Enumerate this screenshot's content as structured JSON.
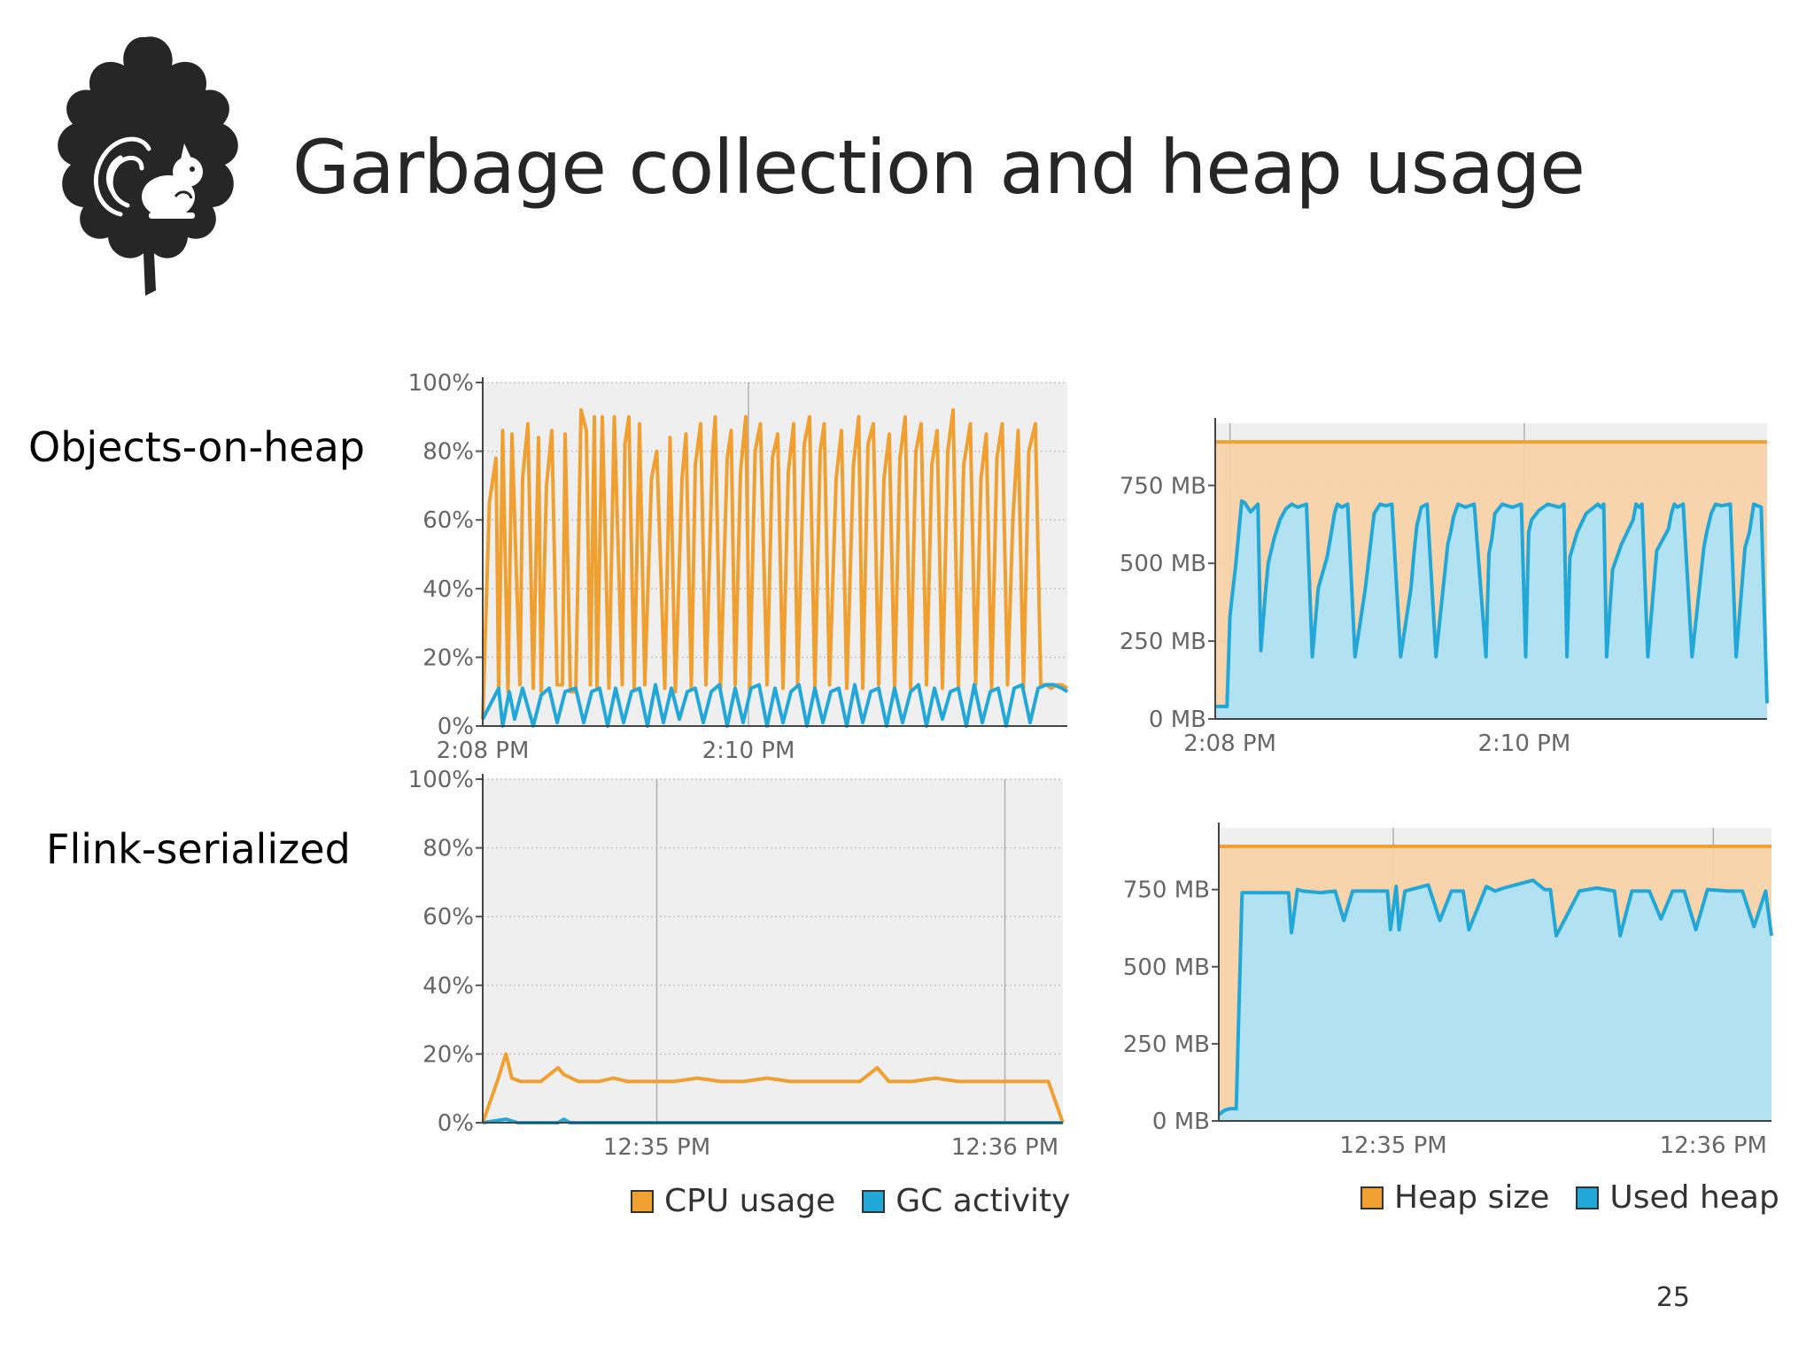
{
  "title": "Garbage collection and heap usage",
  "row_labels": {
    "top": "Objects-on-heap",
    "bottom": "Flink-serialized"
  },
  "page_number": "25",
  "colors": {
    "orange": "#F0A030",
    "blue": "#22A8D8",
    "text": "#262626"
  },
  "legends": {
    "cpu": [
      {
        "label": "CPU usage",
        "color": "#F0A030"
      },
      {
        "label": "GC activity",
        "color": "#22A8D8"
      }
    ],
    "heap": [
      {
        "label": "Heap size",
        "color": "#F0A030"
      },
      {
        "label": "Used heap",
        "color": "#22A8D8"
      }
    ]
  },
  "chart_data": [
    {
      "type": "line",
      "ylim": [
        0,
        100
      ],
      "xlim": [
        0,
        4.4
      ],
      "yticks": [
        0,
        20,
        40,
        60,
        80,
        100
      ],
      "ytick_labels": [
        "0%",
        "20%",
        "40%",
        "60%",
        "80%",
        "100%"
      ],
      "xticks": [
        0,
        2
      ],
      "xtick_labels": [
        "2:08 PM",
        "2:10 PM"
      ],
      "grid": true,
      "series": [
        {
          "name": "CPU usage",
          "color": "#F0A030",
          "x": [
            0.0,
            0.05,
            0.1,
            0.12,
            0.15,
            0.19,
            0.22,
            0.28,
            0.3,
            0.34,
            0.38,
            0.42,
            0.44,
            0.48,
            0.52,
            0.56,
            0.6,
            0.62,
            0.66,
            0.7,
            0.74,
            0.78,
            0.81,
            0.84,
            0.86,
            0.9,
            0.95,
            0.99,
            1.05,
            1.07,
            1.1,
            1.14,
            1.18,
            1.22,
            1.27,
            1.31,
            1.37,
            1.41,
            1.45,
            1.5,
            1.53,
            1.57,
            1.6,
            1.64,
            1.68,
            1.73,
            1.75,
            1.79,
            1.84,
            1.87,
            1.9,
            1.94,
            1.98,
            2.01,
            2.05,
            2.09,
            2.14,
            2.18,
            2.22,
            2.26,
            2.3,
            2.34,
            2.37,
            2.42,
            2.46,
            2.5,
            2.54,
            2.57,
            2.61,
            2.66,
            2.7,
            2.74,
            2.79,
            2.83,
            2.86,
            2.9,
            2.94,
            2.98,
            3.02,
            3.06,
            3.1,
            3.14,
            3.18,
            3.22,
            3.26,
            3.3,
            3.34,
            3.38,
            3.42,
            3.46,
            3.5,
            3.54,
            3.58,
            3.62,
            3.67,
            3.71,
            3.75,
            3.79,
            3.83,
            3.87,
            3.91,
            3.95,
            3.99,
            4.03,
            4.07,
            4.11,
            4.16,
            4.2,
            4.24,
            4.28,
            4.32,
            4.36,
            4.4
          ],
          "y": [
            2,
            65,
            78,
            10,
            86,
            10,
            85,
            12,
            72,
            88,
            11,
            84,
            10,
            70,
            86,
            12,
            12,
            85,
            10,
            10,
            92,
            86,
            12,
            90,
            11,
            90,
            11,
            90,
            12,
            82,
            90,
            11,
            88,
            12,
            72,
            80,
            11,
            84,
            10,
            72,
            85,
            11,
            76,
            88,
            12,
            80,
            90,
            11,
            78,
            86,
            12,
            74,
            90,
            11,
            80,
            88,
            12,
            78,
            85,
            11,
            74,
            88,
            12,
            82,
            90,
            11,
            80,
            88,
            12,
            72,
            86,
            11,
            76,
            90,
            11,
            82,
            88,
            12,
            72,
            85,
            11,
            78,
            90,
            11,
            80,
            88,
            12,
            76,
            86,
            11,
            80,
            92,
            11,
            76,
            88,
            12,
            72,
            85,
            11,
            78,
            88,
            12,
            60,
            86,
            11,
            80,
            88,
            12,
            12,
            11,
            12,
            12,
            11
          ]
        },
        {
          "name": "GC activity",
          "color": "#22A8D8",
          "x": [
            0.0,
            0.08,
            0.12,
            0.15,
            0.2,
            0.24,
            0.3,
            0.38,
            0.44,
            0.5,
            0.56,
            0.62,
            0.7,
            0.76,
            0.82,
            0.88,
            0.94,
            1.0,
            1.06,
            1.12,
            1.18,
            1.24,
            1.3,
            1.36,
            1.42,
            1.48,
            1.54,
            1.6,
            1.66,
            1.72,
            1.78,
            1.84,
            1.9,
            1.96,
            2.02,
            2.08,
            2.14,
            2.2,
            2.26,
            2.32,
            2.38,
            2.44,
            2.5,
            2.56,
            2.62,
            2.68,
            2.74,
            2.8,
            2.86,
            2.92,
            2.98,
            3.04,
            3.1,
            3.16,
            3.22,
            3.28,
            3.34,
            3.4,
            3.46,
            3.52,
            3.58,
            3.64,
            3.7,
            3.76,
            3.82,
            3.88,
            3.94,
            4.0,
            4.06,
            4.12,
            4.18,
            4.24,
            4.3,
            4.36,
            4.4
          ],
          "y": [
            2,
            8,
            11,
            0,
            10,
            2,
            11,
            0,
            9,
            11,
            1,
            10,
            11,
            1,
            10,
            11,
            0,
            11,
            1,
            10,
            11,
            0,
            12,
            1,
            11,
            2,
            10,
            11,
            1,
            10,
            12,
            0,
            11,
            1,
            11,
            12,
            0,
            11,
            1,
            10,
            12,
            0,
            11,
            1,
            10,
            11,
            0,
            12,
            1,
            10,
            11,
            0,
            11,
            1,
            10,
            12,
            0,
            11,
            2,
            10,
            11,
            0,
            12,
            1,
            10,
            11,
            0,
            11,
            12,
            1,
            11,
            12,
            12,
            11,
            10
          ]
        }
      ]
    },
    {
      "type": "area",
      "ylim": [
        0,
        950
      ],
      "xlim": [
        0,
        3.75
      ],
      "yticks": [
        0,
        250,
        500,
        750
      ],
      "ytick_labels": [
        "0 MB",
        "250 MB",
        "500 MB",
        "750 MB"
      ],
      "xticks": [
        0.1,
        2.1
      ],
      "xtick_labels": [
        "2:08 PM",
        "2:10 PM"
      ],
      "grid": true,
      "series": [
        {
          "name": "Heap size",
          "color": "#F0A030",
          "x": [
            0.0,
            3.75
          ],
          "y": [
            890,
            890
          ]
        },
        {
          "name": "Used heap",
          "color": "#22A8D8",
          "x": [
            0.0,
            0.06,
            0.08,
            0.1,
            0.14,
            0.18,
            0.2,
            0.24,
            0.29,
            0.31,
            0.34,
            0.36,
            0.4,
            0.44,
            0.48,
            0.52,
            0.56,
            0.62,
            0.66,
            0.7,
            0.76,
            0.79,
            0.81,
            0.83,
            0.86,
            0.9,
            0.95,
            1.02,
            1.04,
            1.06,
            1.08,
            1.12,
            1.16,
            1.2,
            1.26,
            1.33,
            1.35,
            1.37,
            1.4,
            1.44,
            1.5,
            1.58,
            1.6,
            1.62,
            1.65,
            1.7,
            1.76,
            1.84,
            1.86,
            1.88,
            1.9,
            1.95,
            2.02,
            2.08,
            2.11,
            2.13,
            2.15,
            2.2,
            2.26,
            2.34,
            2.37,
            2.39,
            2.41,
            2.46,
            2.52,
            2.6,
            2.62,
            2.64,
            2.66,
            2.7,
            2.76,
            2.84,
            2.86,
            2.88,
            2.9,
            2.94,
            3.0,
            3.08,
            3.1,
            3.12,
            3.14,
            3.18,
            3.24,
            3.32,
            3.34,
            3.37,
            3.4,
            3.44,
            3.5,
            3.54,
            3.6,
            3.63,
            3.66,
            3.71,
            3.75
          ],
          "y": [
            40,
            40,
            40,
            330,
            500,
            700,
            695,
            665,
            690,
            220,
            400,
            500,
            580,
            640,
            675,
            690,
            680,
            690,
            200,
            420,
            520,
            600,
            660,
            690,
            680,
            690,
            200,
            420,
            500,
            580,
            660,
            690,
            685,
            690,
            200,
            420,
            530,
            620,
            680,
            690,
            200,
            560,
            600,
            650,
            690,
            680,
            690,
            200,
            530,
            580,
            660,
            690,
            680,
            690,
            200,
            600,
            640,
            670,
            690,
            680,
            690,
            200,
            520,
            600,
            660,
            690,
            680,
            690,
            200,
            480,
            560,
            640,
            690,
            680,
            690,
            200,
            540,
            610,
            660,
            690,
            680,
            690,
            200,
            550,
            600,
            660,
            690,
            685,
            690,
            200,
            550,
            600,
            690,
            680,
            50
          ]
        }
      ]
    },
    {
      "type": "line",
      "ylim": [
        0,
        100
      ],
      "xlim": [
        0,
        2.0
      ],
      "yticks": [
        0,
        20,
        40,
        60,
        80,
        100
      ],
      "ytick_labels": [
        "0%",
        "20%",
        "40%",
        "60%",
        "80%",
        "100%"
      ],
      "xticks": [
        0.6,
        1.8
      ],
      "xtick_labels": [
        "12:35 PM",
        "12:36 PM"
      ],
      "grid": true,
      "series": [
        {
          "name": "CPU usage",
          "color": "#F0A030",
          "x": [
            0.0,
            0.05,
            0.08,
            0.1,
            0.13,
            0.2,
            0.26,
            0.28,
            0.33,
            0.4,
            0.45,
            0.5,
            0.58,
            0.66,
            0.74,
            0.82,
            0.9,
            0.98,
            1.06,
            1.14,
            1.22,
            1.3,
            1.36,
            1.4,
            1.48,
            1.56,
            1.64,
            1.72,
            1.8,
            1.88,
            1.95,
            2.0
          ],
          "y": [
            0,
            12,
            20,
            13,
            12,
            12,
            16,
            14,
            12,
            12,
            13,
            12,
            12,
            12,
            13,
            12,
            12,
            13,
            12,
            12,
            12,
            12,
            16,
            12,
            12,
            13,
            12,
            12,
            12,
            12,
            12,
            0
          ]
        },
        {
          "name": "GC activity",
          "color": "#22A8D8",
          "x": [
            0.0,
            0.08,
            0.12,
            0.26,
            0.28,
            0.3,
            0.5,
            1.0,
            1.5,
            2.0
          ],
          "y": [
            0,
            1,
            0,
            0,
            1,
            0,
            0,
            0,
            0,
            0
          ]
        }
      ]
    },
    {
      "type": "area",
      "ylim": [
        0,
        950
      ],
      "xlim": [
        0,
        1.9
      ],
      "yticks": [
        0,
        250,
        500,
        750
      ],
      "ytick_labels": [
        "0 MB",
        "250 MB",
        "500 MB",
        "750 MB"
      ],
      "xticks": [
        0.6,
        1.7
      ],
      "xtick_labels": [
        "12:35 PM",
        "12:36 PM"
      ],
      "grid": true,
      "series": [
        {
          "name": "Heap size",
          "color": "#F0A030",
          "x": [
            0.0,
            1.9
          ],
          "y": [
            890,
            890
          ]
        },
        {
          "name": "Used heap",
          "color": "#22A8D8",
          "x": [
            0.0,
            0.02,
            0.04,
            0.06,
            0.08,
            0.1,
            0.24,
            0.25,
            0.27,
            0.29,
            0.35,
            0.4,
            0.43,
            0.46,
            0.58,
            0.59,
            0.61,
            0.62,
            0.64,
            0.66,
            0.72,
            0.76,
            0.8,
            0.82,
            0.84,
            0.86,
            0.92,
            0.95,
            0.98,
            1.08,
            1.12,
            1.14,
            1.16,
            1.24,
            1.3,
            1.36,
            1.38,
            1.42,
            1.48,
            1.52,
            1.56,
            1.6,
            1.64,
            1.68,
            1.75,
            1.8,
            1.84,
            1.88,
            1.9
          ],
          "y": [
            20,
            35,
            40,
            40,
            740,
            740,
            740,
            610,
            750,
            745,
            740,
            745,
            650,
            745,
            745,
            620,
            760,
            620,
            745,
            750,
            765,
            650,
            745,
            745,
            745,
            620,
            760,
            745,
            755,
            780,
            750,
            750,
            600,
            745,
            755,
            745,
            600,
            745,
            745,
            655,
            745,
            745,
            620,
            750,
            745,
            745,
            630,
            745,
            600
          ]
        }
      ]
    }
  ]
}
